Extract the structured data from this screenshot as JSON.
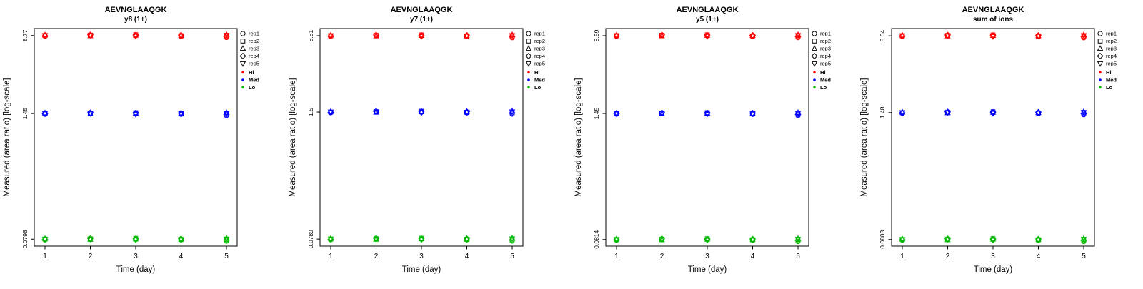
{
  "page": {
    "background": "#ffffff"
  },
  "colors": {
    "hi": "#FF0000",
    "med": "#0000FF",
    "lo": "#00BB00",
    "axis": "#000000"
  },
  "legend": {
    "reps": [
      {
        "label": "rep1",
        "shape": "circle"
      },
      {
        "label": "rep2",
        "shape": "square"
      },
      {
        "label": "rep3",
        "shape": "triangle-up"
      },
      {
        "label": "rep4",
        "shape": "diamond"
      },
      {
        "label": "rep5",
        "shape": "triangle-down"
      }
    ],
    "levels": [
      {
        "label": "Hi",
        "color_key": "hi"
      },
      {
        "label": "Med",
        "color_key": "med"
      },
      {
        "label": "Lo",
        "color_key": "lo"
      }
    ]
  },
  "rep_factors": [
    [
      0.985,
      1.0,
      1.012,
      0.993,
      1.004
    ],
    [
      1.0,
      1.01,
      0.992,
      1.018,
      1.002
    ],
    [
      0.994,
      1.02,
      1.003,
      1.01,
      0.985
    ],
    [
      0.982,
      0.992,
      1.0,
      1.01,
      0.996
    ],
    [
      0.955,
      1.0,
      1.02,
      0.978,
      1.008
    ]
  ],
  "chart_data": [
    {
      "type": "scatter",
      "title": "AEVNGLAAQGK",
      "subtitle": "y8 (1+)",
      "xlabel": "Time (day)",
      "ylabel": "Measured (area ratio) [log-scale]",
      "x": [
        1,
        2,
        3,
        4,
        5
      ],
      "ylog": true,
      "ylim": [
        0.068,
        10.3
      ],
      "y_ticks": [
        {
          "label": "8.77",
          "value": 8.77
        },
        {
          "label": "1.45",
          "value": 1.45
        },
        {
          "label": "0.0798",
          "value": 0.0798
        }
      ],
      "series": [
        {
          "name": "Hi",
          "color_key": "hi",
          "base": 8.77
        },
        {
          "name": "Med",
          "color_key": "med",
          "base": 1.45
        },
        {
          "name": "Lo",
          "color_key": "lo",
          "base": 0.0798
        }
      ]
    },
    {
      "type": "scatter",
      "title": "AEVNGLAAQGK",
      "subtitle": "y7 (1+)",
      "xlabel": "Time (day)",
      "ylabel": "Measured (area ratio) [log-scale]",
      "x": [
        1,
        2,
        3,
        4,
        5
      ],
      "ylog": true,
      "ylim": [
        0.067,
        10.4
      ],
      "y_ticks": [
        {
          "label": "8.81",
          "value": 8.81
        },
        {
          "label": "1.5",
          "value": 1.5
        },
        {
          "label": "0.0789",
          "value": 0.0789
        }
      ],
      "series": [
        {
          "name": "Hi",
          "color_key": "hi",
          "base": 8.81
        },
        {
          "name": "Med",
          "color_key": "med",
          "base": 1.5
        },
        {
          "name": "Lo",
          "color_key": "lo",
          "base": 0.0789
        }
      ]
    },
    {
      "type": "scatter",
      "title": "AEVNGLAAQGK",
      "subtitle": "y5 (1+)",
      "xlabel": "Time (day)",
      "ylabel": "Measured (area ratio) [log-scale]",
      "x": [
        1,
        2,
        3,
        4,
        5
      ],
      "ylog": true,
      "ylim": [
        0.07,
        10.1
      ],
      "y_ticks": [
        {
          "label": "8.59",
          "value": 8.59
        },
        {
          "label": "1.45",
          "value": 1.45
        },
        {
          "label": "0.0814",
          "value": 0.0814
        }
      ],
      "series": [
        {
          "name": "Hi",
          "color_key": "hi",
          "base": 8.59
        },
        {
          "name": "Med",
          "color_key": "med",
          "base": 1.45
        },
        {
          "name": "Lo",
          "color_key": "lo",
          "base": 0.0814
        }
      ]
    },
    {
      "type": "scatter",
      "title": "AEVNGLAAQGK",
      "subtitle": "sum of ions",
      "xlabel": "Time (day)",
      "ylabel": "Measured (area ratio) [log-scale]",
      "x": [
        1,
        2,
        3,
        4,
        5
      ],
      "ylog": true,
      "ylim": [
        0.069,
        10.2
      ],
      "y_ticks": [
        {
          "label": "8.64",
          "value": 8.64
        },
        {
          "label": "1.48",
          "value": 1.48
        },
        {
          "label": "0.0803",
          "value": 0.0803
        }
      ],
      "series": [
        {
          "name": "Hi",
          "color_key": "hi",
          "base": 8.64
        },
        {
          "name": "Med",
          "color_key": "med",
          "base": 1.48
        },
        {
          "name": "Lo",
          "color_key": "lo",
          "base": 0.0803
        }
      ]
    }
  ]
}
